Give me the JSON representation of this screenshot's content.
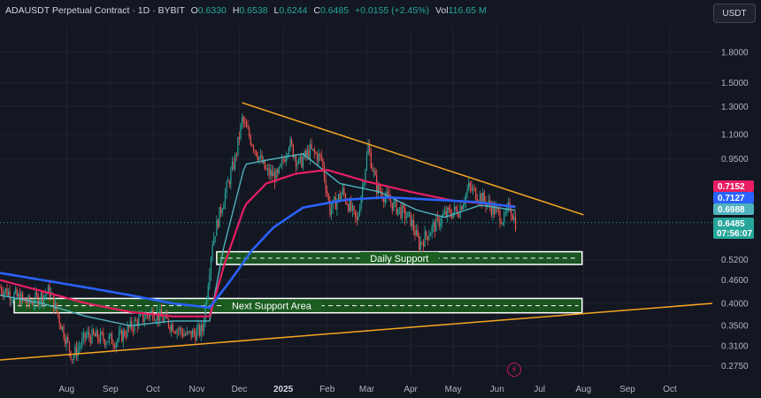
{
  "header": {
    "symbol": "ADAUSDT Perpetual Contract · 1D · BYBIT",
    "o_label": "O",
    "o_value": "0.6330",
    "h_label": "H",
    "h_value": "0.6538",
    "l_label": "L",
    "l_value": "0.6244",
    "c_label": "C",
    "c_value": "0.6485",
    "change": "+0.0155 (+2.45%)",
    "vol_label": "Vol",
    "vol_value": "116.65 M"
  },
  "currency_button": "USDT",
  "flash_icon": "lightning-icon",
  "colors": {
    "bull": "#26a69a",
    "bear": "#ef5350",
    "ma_blue": "#2962ff",
    "ma_pink": "#e91e63",
    "ma_teal": "#4fb3bf",
    "trend": "#f5a623",
    "zone": "#1b5e20"
  },
  "chart_data": {
    "type": "candlestick",
    "y_scale": "log",
    "ylim": [
      0.255,
      2.1
    ],
    "y_ticks": [
      "1.8000",
      "1.5000",
      "1.3000",
      "1.1000",
      "0.9500",
      "0.5200",
      "0.4600",
      "0.4000",
      "0.3500",
      "0.3100",
      "0.2750"
    ],
    "x_ticks": [
      {
        "label": "Aug",
        "date": "2024-08-01"
      },
      {
        "label": "Sep",
        "date": "2024-09-01"
      },
      {
        "label": "Oct",
        "date": "2024-10-01"
      },
      {
        "label": "Nov",
        "date": "2024-11-01"
      },
      {
        "label": "Dec",
        "date": "2024-12-01"
      },
      {
        "label": "2025",
        "date": "2025-01-01",
        "bold": true
      },
      {
        "label": "Feb",
        "date": "2025-02-01"
      },
      {
        "label": "Mar",
        "date": "2025-03-01"
      },
      {
        "label": "Apr",
        "date": "2025-04-01"
      },
      {
        "label": "May",
        "date": "2025-05-01"
      },
      {
        "label": "Jun",
        "date": "2025-06-01"
      },
      {
        "label": "Jul",
        "date": "2025-07-01"
      },
      {
        "label": "Aug",
        "date": "2025-08-01"
      },
      {
        "label": "Sep",
        "date": "2025-09-01"
      },
      {
        "label": "Oct",
        "date": "2025-10-01"
      }
    ],
    "x_range": [
      "2024-06-15",
      "2025-10-31"
    ],
    "price_anchors": [
      [
        "2024-06-15",
        0.44
      ],
      [
        "2024-07-05",
        0.4
      ],
      [
        "2024-07-20",
        0.43
      ],
      [
        "2024-08-05",
        0.29
      ],
      [
        "2024-08-15",
        0.33
      ],
      [
        "2024-09-05",
        0.32
      ],
      [
        "2024-09-20",
        0.36
      ],
      [
        "2024-10-01",
        0.38
      ],
      [
        "2024-10-15",
        0.35
      ],
      [
        "2024-10-25",
        0.33
      ],
      [
        "2024-11-05",
        0.34
      ],
      [
        "2024-11-12",
        0.58
      ],
      [
        "2024-11-20",
        0.75
      ],
      [
        "2024-11-28",
        0.95
      ],
      [
        "2024-12-03",
        1.2
      ],
      [
        "2024-12-10",
        1.05
      ],
      [
        "2024-12-20",
        0.88
      ],
      [
        "2024-12-28",
        0.85
      ],
      [
        "2025-01-05",
        1.05
      ],
      [
        "2025-01-12",
        0.92
      ],
      [
        "2025-01-20",
        1.0
      ],
      [
        "2025-01-28",
        0.95
      ],
      [
        "2025-02-03",
        0.7
      ],
      [
        "2025-02-12",
        0.78
      ],
      [
        "2025-02-22",
        0.65
      ],
      [
        "2025-03-02",
        1.02
      ],
      [
        "2025-03-08",
        0.8
      ],
      [
        "2025-03-20",
        0.72
      ],
      [
        "2025-04-01",
        0.66
      ],
      [
        "2025-04-07",
        0.57
      ],
      [
        "2025-04-15",
        0.62
      ],
      [
        "2025-04-25",
        0.68
      ],
      [
        "2025-05-05",
        0.7
      ],
      [
        "2025-05-12",
        0.8
      ],
      [
        "2025-05-20",
        0.76
      ],
      [
        "2025-05-30",
        0.7
      ],
      [
        "2025-06-06",
        0.66
      ],
      [
        "2025-06-10",
        0.72
      ],
      [
        "2025-06-14",
        0.6485
      ]
    ],
    "ma_blue_anchors": [
      [
        "2024-06-15",
        0.48
      ],
      [
        "2024-07-15",
        0.46
      ],
      [
        "2024-08-15",
        0.44
      ],
      [
        "2024-09-15",
        0.42
      ],
      [
        "2024-10-15",
        0.4
      ],
      [
        "2024-11-10",
        0.39
      ],
      [
        "2024-11-25",
        0.46
      ],
      [
        "2024-12-10",
        0.55
      ],
      [
        "2024-12-25",
        0.63
      ],
      [
        "2025-01-15",
        0.71
      ],
      [
        "2025-02-15",
        0.745
      ],
      [
        "2025-03-15",
        0.755
      ],
      [
        "2025-04-15",
        0.745
      ],
      [
        "2025-05-15",
        0.735
      ],
      [
        "2025-06-14",
        0.7127
      ]
    ],
    "ma_pink_anchors": [
      [
        "2024-06-15",
        0.46
      ],
      [
        "2024-07-15",
        0.43
      ],
      [
        "2024-08-15",
        0.4
      ],
      [
        "2024-09-15",
        0.38
      ],
      [
        "2024-10-15",
        0.37
      ],
      [
        "2024-11-10",
        0.37
      ],
      [
        "2024-11-20",
        0.5
      ],
      [
        "2024-12-05",
        0.72
      ],
      [
        "2024-12-20",
        0.82
      ],
      [
        "2025-01-10",
        0.87
      ],
      [
        "2025-02-01",
        0.89
      ],
      [
        "2025-03-01",
        0.83
      ],
      [
        "2025-04-01",
        0.78
      ],
      [
        "2025-05-01",
        0.74
      ],
      [
        "2025-06-14",
        0.7152
      ]
    ],
    "ma_teal_anchors": [
      [
        "2024-06-15",
        0.42
      ],
      [
        "2024-07-15",
        0.4
      ],
      [
        "2024-08-15",
        0.37
      ],
      [
        "2024-09-15",
        0.35
      ],
      [
        "2024-10-15",
        0.36
      ],
      [
        "2024-11-10",
        0.36
      ],
      [
        "2024-11-20",
        0.56
      ],
      [
        "2024-12-05",
        0.92
      ],
      [
        "2024-12-25",
        0.95
      ],
      [
        "2025-01-15",
        0.98
      ],
      [
        "2025-02-10",
        0.82
      ],
      [
        "2025-03-10",
        0.78
      ],
      [
        "2025-04-05",
        0.7
      ],
      [
        "2025-04-25",
        0.67
      ],
      [
        "2025-05-20",
        0.72
      ],
      [
        "2025-06-14",
        0.6988
      ]
    ],
    "trendlines": [
      {
        "from": [
          "2024-12-03",
          1.33
        ],
        "to": [
          "2025-08-01",
          0.68
        ]
      },
      {
        "from": [
          "2024-06-15",
          0.285
        ],
        "to": [
          "2025-10-31",
          0.4
        ]
      }
    ],
    "zones": [
      {
        "label": "Daily Support",
        "top": 0.545,
        "bottom": 0.505,
        "from": "2024-11-15",
        "to": "2025-07-31"
      },
      {
        "label": "Next Support Area",
        "top": 0.412,
        "bottom": 0.378,
        "from": "2024-06-25",
        "to": "2025-07-31"
      }
    ],
    "price_badges": [
      {
        "value": "0.7152",
        "color": "#e91e63"
      },
      {
        "value": "0.7127",
        "color": "#2962ff"
      },
      {
        "value": "0.6988",
        "color": "#4fb3bf"
      },
      {
        "value": "0.6485",
        "color": "#26a69a",
        "sub": "07:56:07"
      }
    ],
    "last_price": 0.6485
  }
}
